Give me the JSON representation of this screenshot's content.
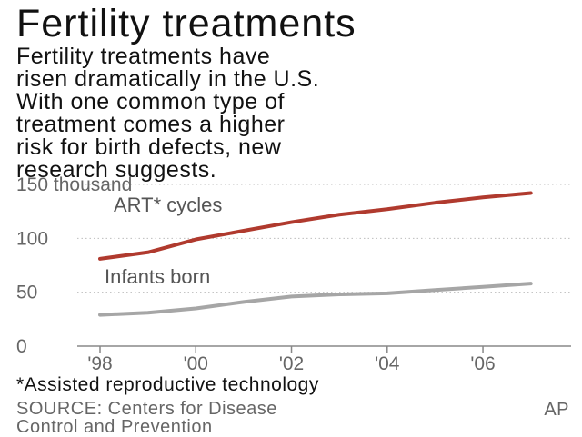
{
  "header": {
    "title": "Fertility treatments",
    "subtitle_lines": [
      "Fertility treatments have",
      "risen dramatically in the U.S.",
      "With one common type of",
      "treatment comes a higher",
      "risk for birth defects, new",
      "research suggests."
    ]
  },
  "chart_data": {
    "type": "line",
    "x": [
      1998,
      1999,
      2000,
      2001,
      2002,
      2003,
      2004,
      2005,
      2006,
      2007
    ],
    "x_tick_labels": [
      "'98",
      "'00",
      "'02",
      "'04",
      "'06"
    ],
    "y_tick_labels": [
      "150 thousand",
      "100",
      "50",
      "0"
    ],
    "ylim": [
      0,
      150
    ],
    "grid": "horizontal-dotted",
    "series": [
      {
        "name": "ART* cycles",
        "color": "#b03a2e",
        "values": [
          81,
          87,
          99,
          107,
          115,
          122,
          127,
          133,
          138,
          142
        ]
      },
      {
        "name": "Infants born",
        "color": "#a6a6a6",
        "values": [
          29,
          31,
          35,
          41,
          46,
          48,
          49,
          52,
          55,
          58
        ]
      }
    ]
  },
  "footnote": "*Assisted reproductive technology",
  "source": {
    "lines": [
      "SOURCE: Centers for Disease",
      "Control and Prevention"
    ],
    "credit": "AP"
  }
}
